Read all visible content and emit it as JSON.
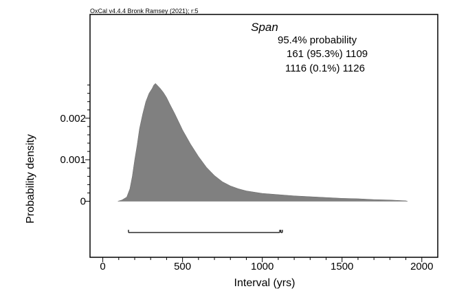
{
  "credit": "OxCal v4.4.4 Bronk Ramsey (2021); r:5",
  "chart_data": {
    "type": "area",
    "title": "Span",
    "xlabel": "Interval (yrs)",
    "ylabel": "Probability density",
    "xlim": [
      -80,
      2100
    ],
    "ylim": [
      -0.00135,
      0.0045
    ],
    "xticks": [
      0,
      500,
      1000,
      1500,
      2000
    ],
    "xtick_labels": [
      "0",
      "500",
      "1000",
      "1500",
      "2000"
    ],
    "yticks": [
      0,
      0.001,
      0.002
    ],
    "ytick_labels": [
      "0",
      "0.001",
      "0.002"
    ],
    "grid": false,
    "fill_color": "#808080",
    "annotation": {
      "heading": "95.4% probability",
      "ranges": [
        "161 (95.3%) 1109",
        "1116 (0.1%) 1126"
      ]
    },
    "hpd_ranges": [
      [
        161,
        1109
      ],
      [
        1116,
        1126
      ]
    ],
    "series": [
      {
        "x": [
          95,
          120,
          150,
          170,
          185,
          200,
          215,
          230,
          250,
          270,
          290,
          310,
          320,
          330,
          340,
          350,
          360,
          380,
          400,
          420,
          450,
          480,
          500,
          550,
          600,
          650,
          700,
          750,
          800,
          850,
          900,
          1000,
          1100,
          1200,
          1300,
          1400,
          1500,
          1600,
          1700,
          1800,
          1900,
          1910
        ],
        "y": [
          0,
          3e-05,
          0.0001,
          0.0003,
          0.0006,
          0.001,
          0.00135,
          0.00175,
          0.0021,
          0.0024,
          0.0026,
          0.00272,
          0.0028,
          0.00284,
          0.0028,
          0.00276,
          0.00272,
          0.00262,
          0.0025,
          0.00234,
          0.00212,
          0.00188,
          0.00172,
          0.00138,
          0.00108,
          0.00082,
          0.00062,
          0.00047,
          0.00037,
          0.0003,
          0.00025,
          0.00019,
          0.00016,
          0.00013,
          0.00011,
          9e-05,
          7e-05,
          6e-05,
          4e-05,
          3e-05,
          1e-05,
          0
        ]
      }
    ]
  }
}
